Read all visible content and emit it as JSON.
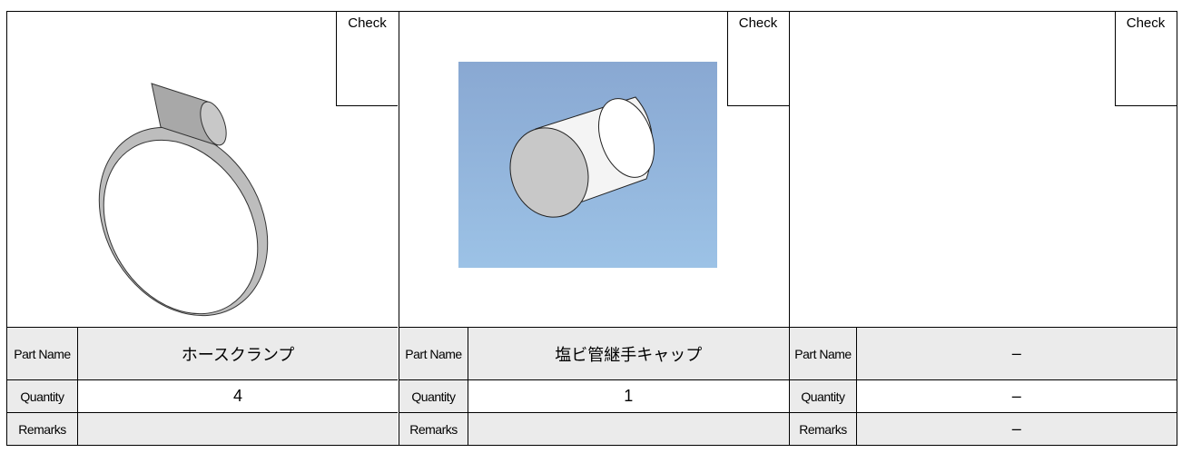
{
  "panels": [
    {
      "check": "Check",
      "part_name_label": "Part Name",
      "part_name": "ホースクランプ",
      "quantity_label": "Quantity",
      "quantity": 4,
      "remarks_label": "Remarks",
      "remarks": null
    },
    {
      "check": "Check",
      "part_name_label": "Part Name",
      "part_name": "塩ビ管継手キャップ",
      "quantity_label": "Quantity",
      "quantity": 1,
      "remarks_label": "Remarks",
      "remarks": null
    },
    {
      "check": "Check",
      "part_name_label": "Part Name",
      "part_name": "–",
      "quantity_label": "Quantity",
      "quantity": "–",
      "remarks_label": "Remarks",
      "remarks": "–"
    }
  ]
}
